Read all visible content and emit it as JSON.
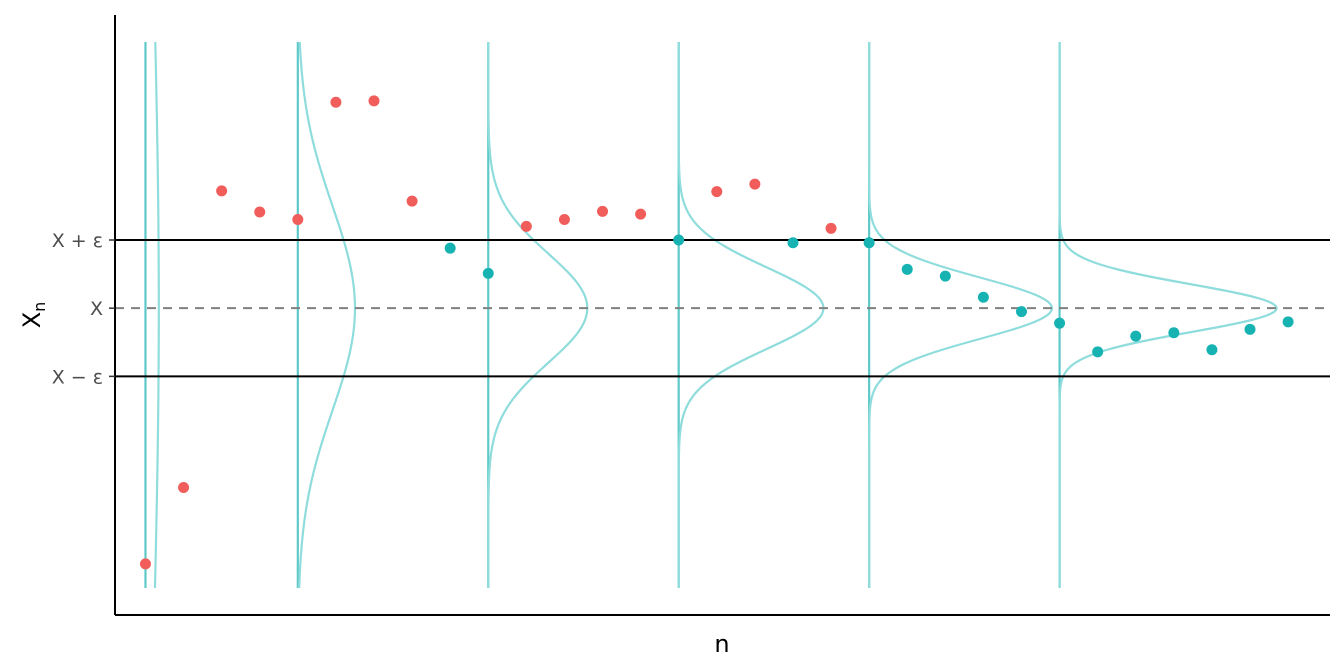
{
  "chart_data": {
    "type": "scatter",
    "xlabel": "n",
    "ylabel_main": "X",
    "ylabel_sub": "n",
    "x_tick_labels": [],
    "y_ticks": [
      {
        "label": "X − ε",
        "value": -1
      },
      {
        "label": "X",
        "value": 0
      },
      {
        "label": "X + ε",
        "value": 1
      }
    ],
    "xlim": [
      0.2,
      32.1
    ],
    "ylim": [
      -4.5,
      4.3
    ],
    "reference_lines": [
      {
        "value": 1,
        "style": "solid"
      },
      {
        "value": 0,
        "style": "dashed"
      },
      {
        "value": -1,
        "style": "solid"
      }
    ],
    "colors": {
      "inside": "#17b3b3",
      "outside": "#f05d5a",
      "density": "#8fdcdc",
      "density_axis": "#5fc9c9",
      "axis": "#000000",
      "dashed": "#808080"
    },
    "points": [
      {
        "x": 1,
        "y": -3.75
      },
      {
        "x": 2,
        "y": -2.63
      },
      {
        "x": 3,
        "y": 1.72
      },
      {
        "x": 4,
        "y": 1.41
      },
      {
        "x": 5,
        "y": 1.3
      },
      {
        "x": 6,
        "y": 3.02
      },
      {
        "x": 7,
        "y": 3.04
      },
      {
        "x": 8,
        "y": 1.57
      },
      {
        "x": 9,
        "y": 0.88
      },
      {
        "x": 10,
        "y": 0.51
      },
      {
        "x": 11,
        "y": 1.2
      },
      {
        "x": 12,
        "y": 1.3
      },
      {
        "x": 13,
        "y": 1.42
      },
      {
        "x": 14,
        "y": 1.38
      },
      {
        "x": 15,
        "y": 1.0
      },
      {
        "x": 16,
        "y": 1.71
      },
      {
        "x": 17,
        "y": 1.82
      },
      {
        "x": 18,
        "y": 0.96
      },
      {
        "x": 19,
        "y": 1.17
      },
      {
        "x": 20,
        "y": 0.96
      },
      {
        "x": 21,
        "y": 0.57
      },
      {
        "x": 22,
        "y": 0.47
      },
      {
        "x": 23,
        "y": 0.16
      },
      {
        "x": 24,
        "y": -0.05
      },
      {
        "x": 25,
        "y": -0.22
      },
      {
        "x": 26,
        "y": -0.64
      },
      {
        "x": 27,
        "y": -0.41
      },
      {
        "x": 28,
        "y": -0.36
      },
      {
        "x": 29,
        "y": -0.61
      },
      {
        "x": 30,
        "y": -0.31
      },
      {
        "x": 31,
        "y": -0.2
      }
    ],
    "densities": [
      {
        "x": 1,
        "sd": 5.0,
        "width": 0.35
      },
      {
        "x": 5,
        "sd": 1.5,
        "width": 1.5
      },
      {
        "x": 10,
        "sd": 0.8,
        "width": 2.6
      },
      {
        "x": 15,
        "sd": 0.6,
        "width": 3.8
      },
      {
        "x": 20,
        "sd": 0.45,
        "width": 4.8
      },
      {
        "x": 25,
        "sd": 0.35,
        "width": 5.7
      }
    ]
  }
}
